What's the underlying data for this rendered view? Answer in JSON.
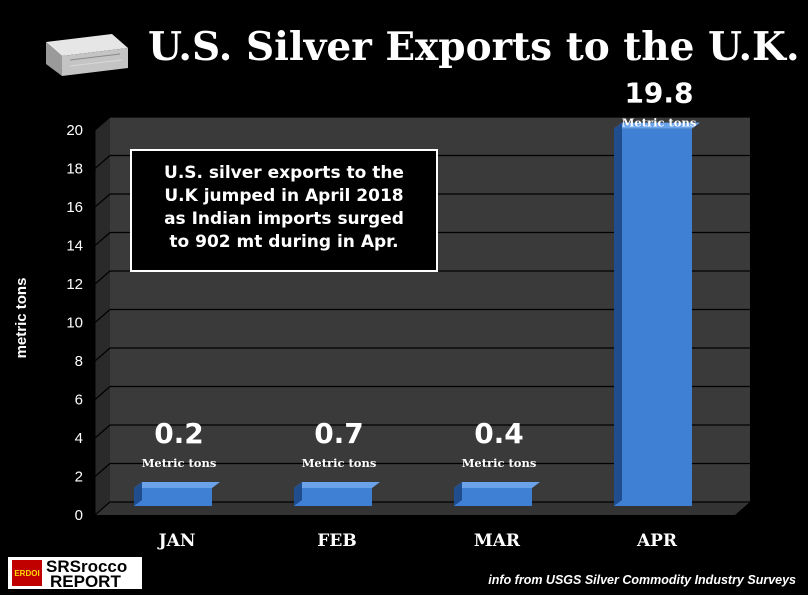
{
  "title": "U.S. Silver Exports to the U.K.",
  "note_lines": [
    "U.S. silver exports to the",
    "U.K jumped in April 2018",
    "as Indian imports surged",
    "to 902 mt during in Apr."
  ],
  "source": "info from USGS Silver Commodity Industry Surveys",
  "logo": {
    "main_line1": "SRSrocco",
    "main_line2": "REPORT",
    "badge": "ERDOI"
  },
  "colors": {
    "background": "#000000",
    "bar": "#3f7fd4",
    "bar_side": "#1f4d8e",
    "wall": "#3a3a3a",
    "floor": "#333333"
  },
  "chart_data": {
    "type": "bar",
    "title": "U.S. Silver Exports to the U.K.",
    "xlabel": "",
    "ylabel": "metric tons",
    "ylim": [
      0,
      20
    ],
    "yticks": [
      0,
      2,
      4,
      6,
      8,
      10,
      12,
      14,
      16,
      18,
      20
    ],
    "categories": [
      "JAN",
      "FEB",
      "MAR",
      "APR"
    ],
    "values": [
      0.2,
      0.7,
      0.4,
      19.8
    ],
    "data_labels": [
      "0.2",
      "0.7",
      "0.4",
      "19.8"
    ],
    "unit_label": "Metric tons",
    "grid": true,
    "style": "3d"
  }
}
